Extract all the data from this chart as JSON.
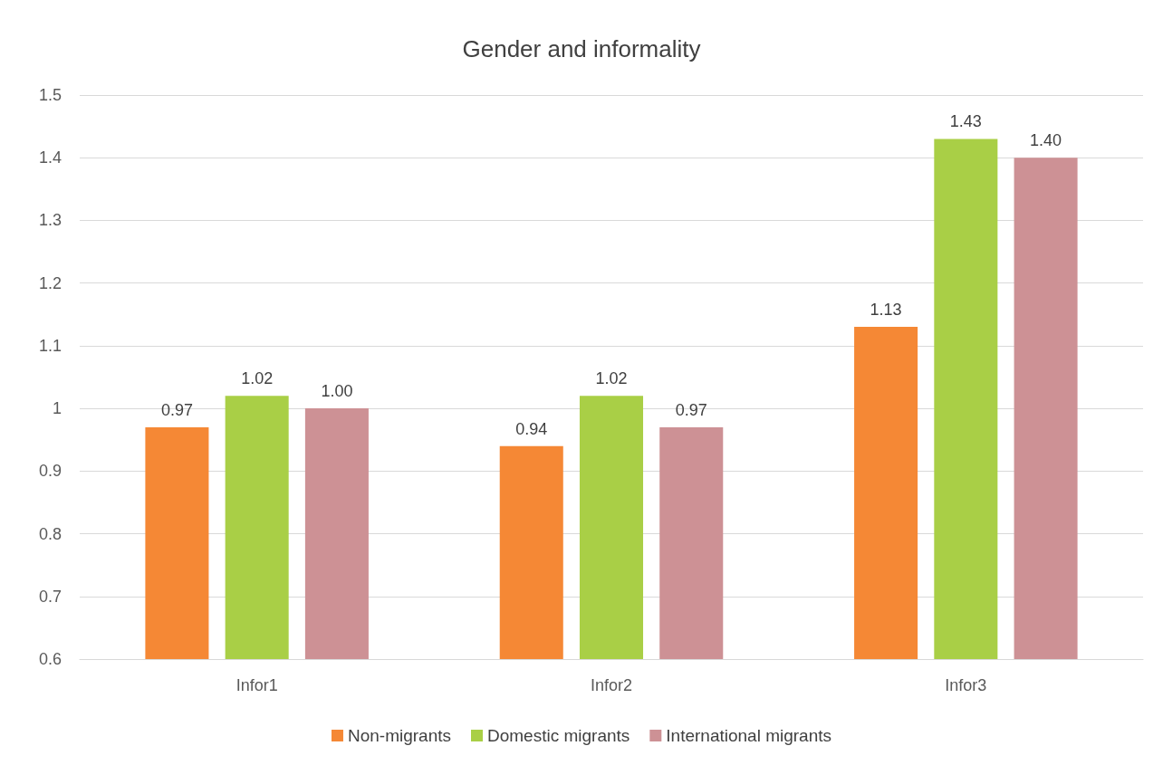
{
  "chart_data": {
    "type": "bar",
    "title": "Gender and informality",
    "categories": [
      "Infor1",
      "Infor2",
      "Infor3"
    ],
    "series": [
      {
        "name": "Non-migrants",
        "color": "#f58835",
        "values": [
          0.97,
          0.94,
          1.13
        ],
        "value_labels": [
          "0.97",
          "0.94",
          "1.13"
        ]
      },
      {
        "name": "Domestic migrants",
        "color": "#a9cf46",
        "values": [
          1.02,
          1.02,
          1.43
        ],
        "value_labels": [
          "1.02",
          "1.02",
          "1.43"
        ]
      },
      {
        "name": "International migrants",
        "color": "#cd9195",
        "values": [
          1.0,
          0.97,
          1.4
        ],
        "value_labels": [
          "1.00",
          "0.97",
          "1.40"
        ]
      }
    ],
    "ylim": [
      0.6,
      1.5
    ],
    "yticks": [
      0.6,
      0.7,
      0.8,
      0.9,
      1,
      1.1,
      1.2,
      1.3,
      1.4,
      1.5
    ],
    "grid": "y",
    "legend": "bottom"
  }
}
